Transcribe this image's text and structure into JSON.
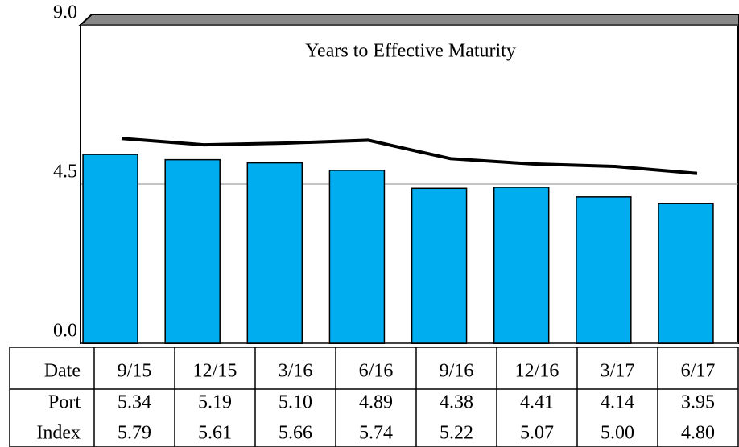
{
  "chart_data": {
    "type": "bar-line",
    "title": "Years to Effective Maturity",
    "category_label": "Date",
    "categories": [
      "9/15",
      "12/15",
      "3/16",
      "6/16",
      "9/16",
      "12/16",
      "3/17",
      "6/17"
    ],
    "series": [
      {
        "name": "Port",
        "type": "bar",
        "color": "#00aeef",
        "values": [
          5.34,
          5.19,
          5.1,
          4.89,
          4.38,
          4.41,
          4.14,
          3.95
        ],
        "value_labels": [
          "5.34",
          "5.19",
          "5.10",
          "4.89",
          "4.38",
          "4.41",
          "4.14",
          "3.95"
        ]
      },
      {
        "name": "Index",
        "type": "line",
        "color": "#000000",
        "values": [
          5.79,
          5.61,
          5.66,
          5.74,
          5.22,
          5.07,
          5.0,
          4.8
        ],
        "value_labels": [
          "5.79",
          "5.61",
          "5.66",
          "5.74",
          "5.22",
          "5.07",
          "5.00",
          "4.80"
        ]
      }
    ],
    "ylim": [
      0,
      9
    ],
    "yticks": [
      {
        "value": 0,
        "label": "0.0"
      },
      {
        "value": 4.5,
        "label": "4.5"
      },
      {
        "value": 9,
        "label": "9.0"
      }
    ],
    "grid": true
  }
}
